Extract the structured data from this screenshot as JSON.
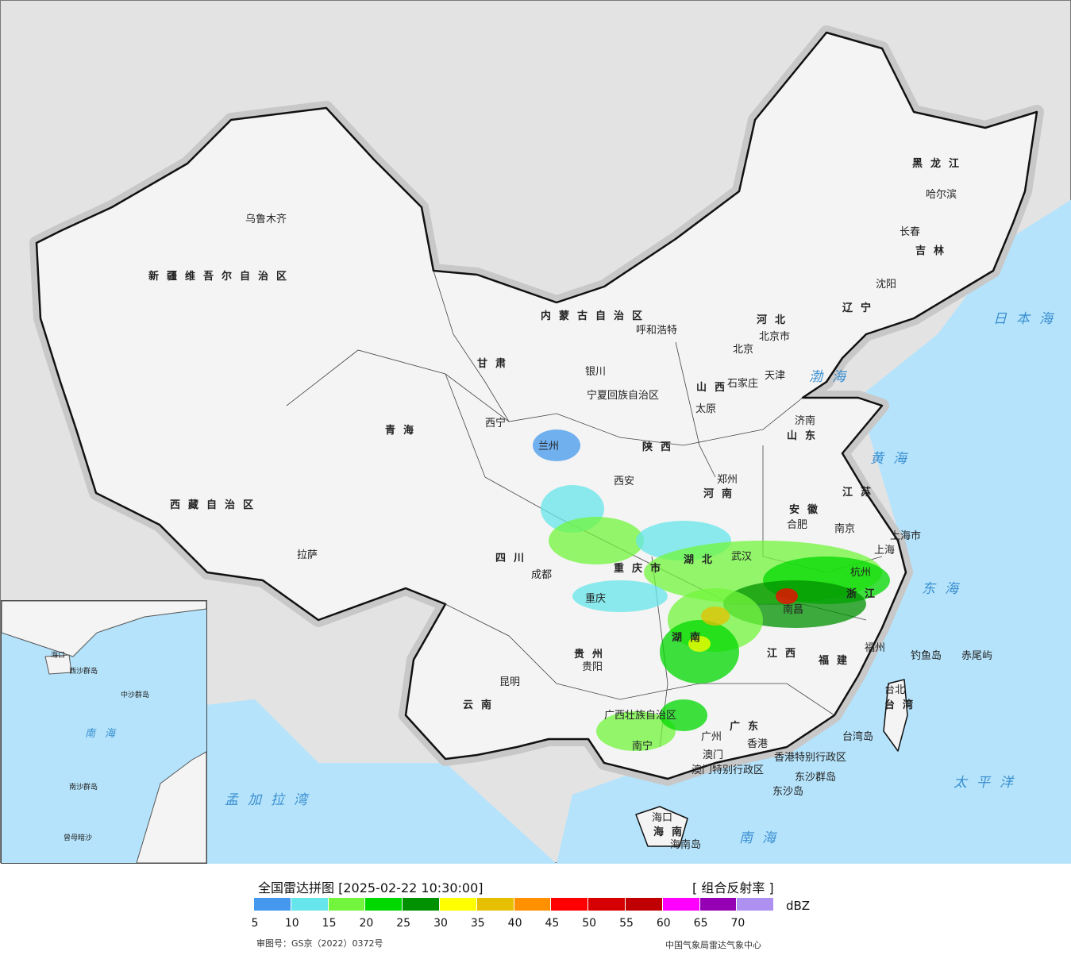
{
  "legend": {
    "title": "全国雷达拼图 [2025-02-22 10:30:00]",
    "product": "[ 组合反射率 ]",
    "unit": "dBZ",
    "colors": [
      "#4499ee",
      "#66e5ea",
      "#72f53c",
      "#00d800",
      "#009100",
      "#ffff00",
      "#e6c000",
      "#ff9000",
      "#ff0000",
      "#d60000",
      "#c00000",
      "#ff00ff",
      "#9600b4",
      "#ad90f0"
    ],
    "ticks": [
      "5",
      "10",
      "15",
      "20",
      "25",
      "30",
      "35",
      "40",
      "45",
      "50",
      "55",
      "60",
      "65",
      "70"
    ],
    "approval": "审图号：GS京（2022）0372号",
    "source": "中国气象局雷达气象中心"
  },
  "map": {
    "colors": {
      "land": "#f4f4f4",
      "outside": "#e3e3e3",
      "ocean": "#b5e3fb",
      "border": "#111111"
    },
    "labels": [
      "乌鲁木齐",
      "新疆维吾尔自治区",
      "西藏自治区",
      "拉萨",
      "青海",
      "西宁",
      "甘肃",
      "兰州",
      "内蒙古自治区",
      "呼和浩特",
      "银川",
      "宁夏回族自治区",
      "北京",
      "北京市",
      "天津",
      "河北",
      "石家庄",
      "山西",
      "太原",
      "陕西",
      "西安",
      "河南",
      "郑州",
      "山东",
      "济南",
      "江苏",
      "南京",
      "上海市",
      "上海",
      "安徽",
      "合肥",
      "湖北",
      "武汉",
      "重庆市",
      "重庆",
      "四川",
      "成都",
      "贵州",
      "贵阳",
      "云南",
      "昆明",
      "湖南",
      "江西",
      "南昌",
      "浙江",
      "杭州",
      "福建",
      "福州",
      "广西壮族自治区",
      "南宁",
      "广东",
      "广州",
      "澳门",
      "香港",
      "香港特别行政区",
      "澳门特别行政区",
      "东沙群岛",
      "东沙岛",
      "海南",
      "海口",
      "海南岛",
      "台北",
      "台湾",
      "台湾岛",
      "钓鱼岛",
      "赤尾屿",
      "黑龙江",
      "哈尔滨",
      "吉林",
      "长春",
      "辽宁",
      "沈阳",
      "渤海",
      "黄海",
      "东海",
      "日本海",
      "太平洋",
      "南海",
      "孟加拉湾"
    ],
    "inset_labels": [
      "南海",
      "中沙群岛",
      "西沙群岛",
      "南沙群岛",
      "海口",
      "曾母暗沙"
    ]
  }
}
